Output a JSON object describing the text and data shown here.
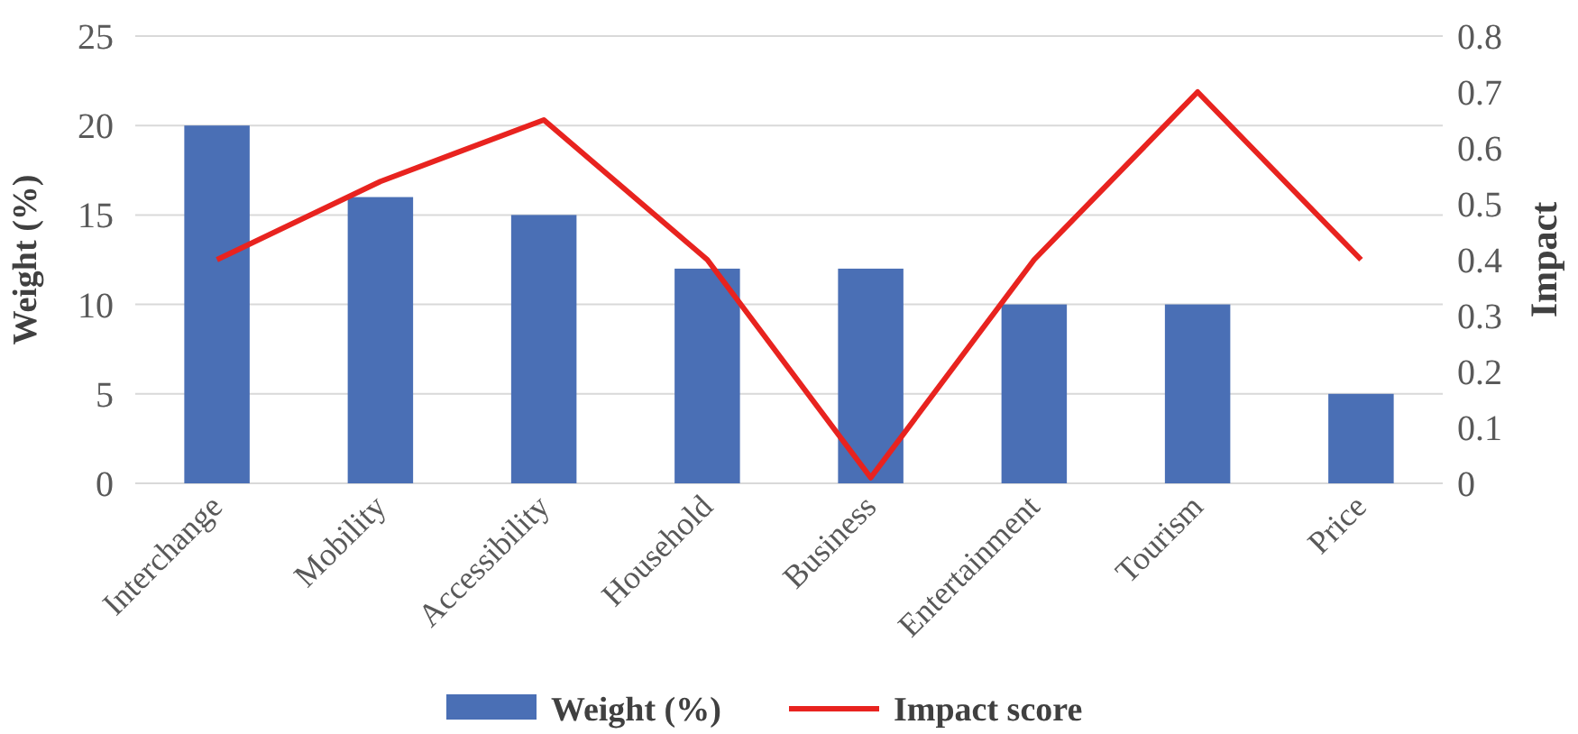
{
  "chart_data": {
    "type": "bar",
    "categories": [
      "Interchange",
      "Mobility",
      "Accessibility",
      "Household",
      "Business",
      "Entertainment",
      "Tourism",
      "Price"
    ],
    "series": [
      {
        "name": "Weight (%)",
        "color": "#4a6fb5",
        "values": [
          20,
          16,
          15,
          12,
          12,
          10,
          10,
          5
        ]
      },
      {
        "name": "Impact score",
        "type": "line",
        "axis": "y2",
        "color": "#e8231f",
        "values": [
          0.4,
          0.54,
          0.65,
          0.4,
          0.01,
          0.4,
          0.7,
          0.4
        ]
      }
    ],
    "ylabel": "Weight (%)",
    "y2label": "Impact",
    "ylim": [
      0,
      25
    ],
    "yticks": [
      0,
      5,
      10,
      15,
      20,
      25
    ],
    "y2lim": [
      0,
      0.8
    ],
    "y2ticks": [
      0,
      0.1,
      0.2,
      0.3,
      0.4,
      0.5,
      0.6,
      0.7,
      0.8
    ],
    "grid": "y",
    "legend": "bottom",
    "marker": "none",
    "line_style": "solid"
  }
}
